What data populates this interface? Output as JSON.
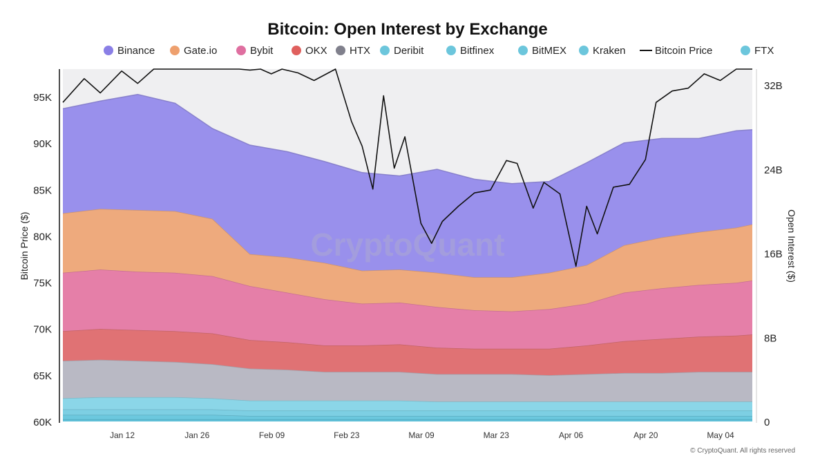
{
  "chart_data": {
    "type": "area",
    "title": "Bitcoin: Open Interest by Exchange",
    "ylabel_left": "Bitcoin Price ($)",
    "ylabel_right": "Open Interest ($)",
    "watermark": "CryptoQuant",
    "copyright": "© CryptoQuant. All rights reserved",
    "y_left_ticks": [
      "95K",
      "90K",
      "85K",
      "80K",
      "75K",
      "70K",
      "65K",
      "60K"
    ],
    "y_right_ticks": [
      "32B",
      "24B",
      "16B",
      "8B",
      "0"
    ],
    "x_ticks": [
      "Jan 12",
      "Jan 26",
      "Feb 09",
      "Feb 23",
      "Mar 09",
      "Mar 23",
      "Apr 06",
      "Apr 20",
      "May 04"
    ],
    "legend": [
      {
        "label": "Binance",
        "color": "#8a7fe6",
        "kind": "dot"
      },
      {
        "label": "Gate.io",
        "color": "#eea06e",
        "kind": "dot"
      },
      {
        "label": "Bybit",
        "color": "#df6fa0",
        "kind": "dot"
      },
      {
        "label": "OKX",
        "color": "#e0605e",
        "kind": "dot"
      },
      {
        "label": "HTX",
        "color": "#80808c",
        "kind": "dot"
      },
      {
        "label": "Deribit",
        "color": "#6cc6dc",
        "kind": "dot"
      },
      {
        "label": "Bitfinex",
        "color": "#6cc6dc",
        "kind": "dot"
      },
      {
        "label": "BitMEX",
        "color": "#6cc6dc",
        "kind": "dot"
      },
      {
        "label": "Kraken",
        "color": "#6cc6dc",
        "kind": "dot"
      },
      {
        "label": "Bitcoin Price",
        "color": "#111111",
        "kind": "line"
      },
      {
        "label": "FTX",
        "color": "#6cc6dc",
        "kind": "dot"
      }
    ],
    "x_range": [
      "2025-01-01",
      "2025-05-10"
    ],
    "y_left_range": [
      60000,
      97000
    ],
    "y_right_range": [
      0,
      32000000000
    ],
    "dates": [
      "2025-01-01",
      "2025-01-08",
      "2025-01-15",
      "2025-01-22",
      "2025-01-29",
      "2025-02-05",
      "2025-02-12",
      "2025-02-19",
      "2025-02-26",
      "2025-03-05",
      "2025-03-12",
      "2025-03-19",
      "2025-03-26",
      "2025-04-02",
      "2025-04-09",
      "2025-04-16",
      "2025-04-23",
      "2025-04-30",
      "2025-05-07",
      "2025-05-10"
    ],
    "series": [
      {
        "name": "Kraken",
        "color": "#5fc0d8",
        "values": [
          0.2,
          0.2,
          0.2,
          0.2,
          0.2,
          0.2,
          0.2,
          0.2,
          0.2,
          0.2,
          0.2,
          0.2,
          0.2,
          0.2,
          0.2,
          0.2,
          0.2,
          0.2,
          0.2,
          0.2
        ]
      },
      {
        "name": "BitMEX",
        "color": "#6cc8de",
        "values": [
          0.4,
          0.4,
          0.4,
          0.4,
          0.4,
          0.3,
          0.3,
          0.3,
          0.3,
          0.3,
          0.3,
          0.3,
          0.3,
          0.3,
          0.3,
          0.3,
          0.3,
          0.3,
          0.3,
          0.3
        ]
      },
      {
        "name": "Bitfinex",
        "color": "#7dcfe3",
        "values": [
          0.5,
          0.5,
          0.5,
          0.5,
          0.5,
          0.5,
          0.5,
          0.5,
          0.5,
          0.5,
          0.5,
          0.5,
          0.5,
          0.5,
          0.5,
          0.5,
          0.5,
          0.5,
          0.5,
          0.5
        ]
      },
      {
        "name": "Deribit",
        "color": "#8bd6e8",
        "values": [
          1.0,
          1.1,
          1.1,
          1.1,
          1.0,
          0.9,
          0.9,
          0.9,
          0.9,
          0.9,
          0.8,
          0.8,
          0.8,
          0.8,
          0.8,
          0.8,
          0.8,
          0.8,
          0.8,
          0.8
        ]
      },
      {
        "name": "HTX",
        "color": "#b9b9c4",
        "values": [
          3.4,
          3.4,
          3.3,
          3.2,
          3.1,
          2.9,
          2.8,
          2.6,
          2.6,
          2.6,
          2.5,
          2.5,
          2.5,
          2.4,
          2.5,
          2.6,
          2.6,
          2.7,
          2.7,
          2.7
        ]
      },
      {
        "name": "OKX",
        "color": "#e07274",
        "values": [
          2.7,
          2.8,
          2.8,
          2.8,
          2.8,
          2.6,
          2.5,
          2.4,
          2.4,
          2.5,
          2.4,
          2.3,
          2.3,
          2.4,
          2.6,
          2.9,
          3.1,
          3.2,
          3.3,
          3.4
        ]
      },
      {
        "name": "Bybit",
        "color": "#e57fa8",
        "values": [
          5.3,
          5.4,
          5.3,
          5.3,
          5.2,
          4.9,
          4.5,
          4.2,
          3.8,
          3.8,
          3.7,
          3.5,
          3.4,
          3.6,
          3.8,
          4.4,
          4.6,
          4.7,
          4.8,
          4.9
        ]
      },
      {
        "name": "Gate.io",
        "color": "#eeaa7d",
        "values": [
          5.4,
          5.5,
          5.6,
          5.6,
          5.2,
          2.9,
          3.2,
          3.3,
          3.0,
          3.0,
          3.1,
          3.0,
          3.1,
          3.3,
          3.5,
          4.3,
          4.6,
          4.8,
          5.0,
          5.1
        ]
      },
      {
        "name": "Binance",
        "color": "#9990ec",
        "values": [
          9.5,
          9.8,
          10.5,
          9.8,
          8.2,
          9.9,
          9.6,
          9.2,
          8.9,
          8.5,
          9.4,
          8.9,
          8.5,
          8.3,
          9.3,
          9.3,
          9.0,
          8.5,
          8.8,
          8.6
        ]
      }
    ],
    "price_dates": [
      "2025-01-01",
      "2025-01-05",
      "2025-01-08",
      "2025-01-12",
      "2025-01-15",
      "2025-01-18",
      "2025-01-20",
      "2025-01-23",
      "2025-01-26",
      "2025-01-29",
      "2025-02-01",
      "2025-02-03",
      "2025-02-05",
      "2025-02-07",
      "2025-02-09",
      "2025-02-11",
      "2025-02-14",
      "2025-02-17",
      "2025-02-21",
      "2025-02-24",
      "2025-02-26",
      "2025-02-28",
      "2025-03-02",
      "2025-03-04",
      "2025-03-06",
      "2025-03-09",
      "2025-03-11",
      "2025-03-13",
      "2025-03-16",
      "2025-03-19",
      "2025-03-22",
      "2025-03-25",
      "2025-03-27",
      "2025-03-30",
      "2025-04-01",
      "2025-04-04",
      "2025-04-07",
      "2025-04-09",
      "2025-04-11",
      "2025-04-14",
      "2025-04-17",
      "2025-04-20",
      "2025-04-22",
      "2025-04-25",
      "2025-04-28",
      "2025-05-01",
      "2025-05-04",
      "2025-05-07",
      "2025-05-10"
    ],
    "price_values": [
      93500,
      96000,
      94500,
      96800,
      95500,
      104000,
      102000,
      105500,
      101500,
      104200,
      101000,
      97500,
      96900,
      97700,
      96500,
      97400,
      96600,
      95800,
      98300,
      91500,
      88900,
      84400,
      94200,
      86600,
      89900,
      80800,
      78700,
      81000,
      82600,
      84000,
      84300,
      87400,
      87100,
      82400,
      85100,
      83900,
      76300,
      82600,
      79700,
      84600,
      84900,
      87500,
      93500,
      94700,
      95000,
      96500,
      95800,
      103500,
      104000
    ]
  }
}
